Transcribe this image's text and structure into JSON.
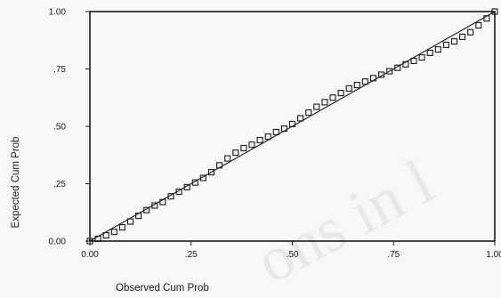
{
  "chart_data": {
    "type": "scatter",
    "title": "",
    "xlabel": "Observed Cum Prob",
    "ylabel": "Expected Cum Prob",
    "xlim": [
      0,
      1
    ],
    "ylim": [
      0,
      1
    ],
    "x_ticks": [
      {
        "value": 0,
        "label": "0.00"
      },
      {
        "value": 0.25,
        "label": ".25"
      },
      {
        "value": 0.5,
        "label": ".50"
      },
      {
        "value": 0.75,
        "label": ".75"
      },
      {
        "value": 1,
        "label": "1.00"
      }
    ],
    "y_ticks": [
      {
        "value": 0,
        "label": "0.00"
      },
      {
        "value": 0.25,
        "label": ".25"
      },
      {
        "value": 0.5,
        "label": ".50"
      },
      {
        "value": 0.75,
        "label": ".75"
      },
      {
        "value": 1,
        "label": "1.00"
      }
    ],
    "grid": false,
    "reference_line": {
      "from": [
        0,
        0
      ],
      "to": [
        1,
        1
      ]
    },
    "marker": "open-square",
    "color": "#1a1a1a",
    "series": [
      {
        "x": [
          0.0,
          0.02,
          0.04,
          0.06,
          0.08,
          0.1,
          0.12,
          0.14,
          0.16,
          0.18,
          0.2,
          0.22,
          0.24,
          0.26,
          0.28,
          0.3,
          0.32,
          0.34,
          0.36,
          0.38,
          0.4,
          0.42,
          0.44,
          0.46,
          0.48,
          0.5,
          0.52,
          0.54,
          0.56,
          0.58,
          0.6,
          0.62,
          0.64,
          0.66,
          0.68,
          0.7,
          0.72,
          0.74,
          0.76,
          0.78,
          0.8,
          0.82,
          0.84,
          0.86,
          0.88,
          0.9,
          0.92,
          0.94,
          0.96,
          0.98,
          1.0
        ],
        "y": [
          0.0,
          0.01,
          0.025,
          0.04,
          0.06,
          0.085,
          0.11,
          0.135,
          0.155,
          0.17,
          0.195,
          0.215,
          0.235,
          0.255,
          0.275,
          0.3,
          0.33,
          0.36,
          0.385,
          0.405,
          0.42,
          0.44,
          0.455,
          0.475,
          0.49,
          0.51,
          0.535,
          0.56,
          0.585,
          0.605,
          0.625,
          0.645,
          0.665,
          0.68,
          0.695,
          0.71,
          0.725,
          0.74,
          0.755,
          0.77,
          0.785,
          0.8,
          0.82,
          0.835,
          0.855,
          0.87,
          0.89,
          0.91,
          0.94,
          0.97,
          1.0
        ]
      }
    ]
  }
}
